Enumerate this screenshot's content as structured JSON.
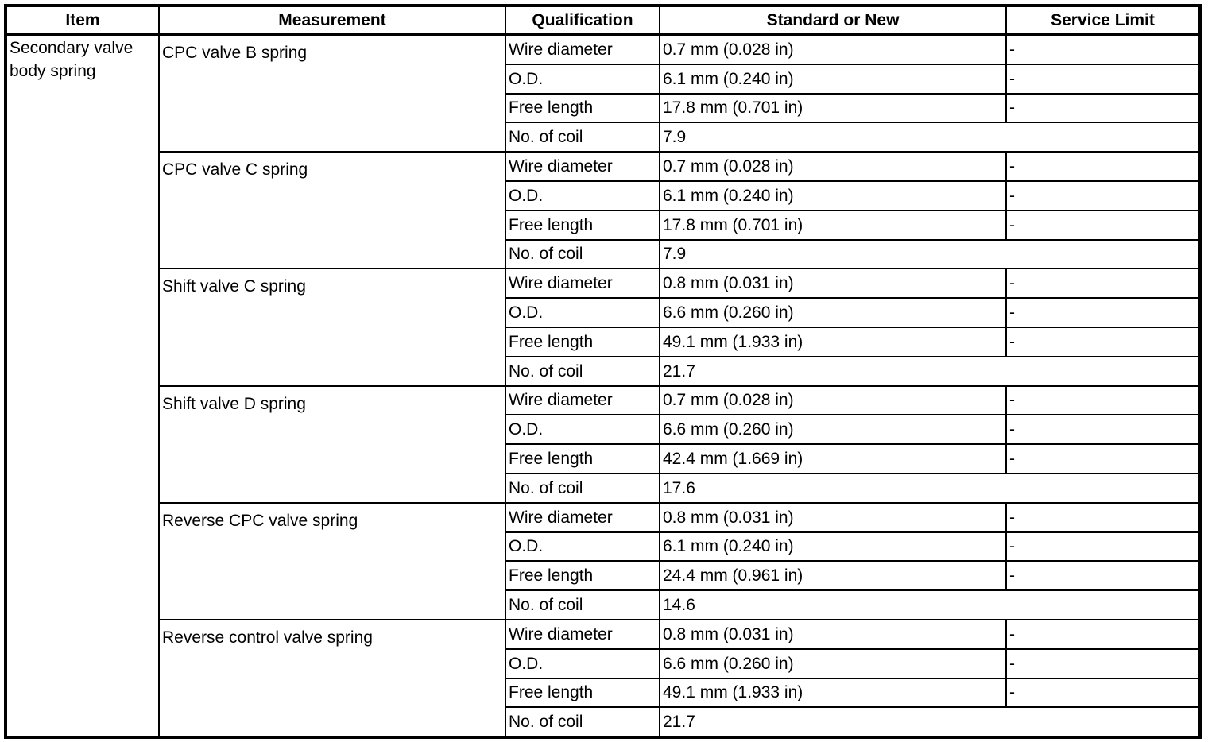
{
  "table": {
    "headers": [
      "Item",
      "Measurement",
      "Qualification",
      "Standard or New",
      "Service Limit"
    ],
    "item": "Secondary valve body spring",
    "groups": [
      {
        "measurement": "CPC valve B spring",
        "rows": [
          {
            "qualification": "Wire diameter",
            "standard": "0.7 mm (0.028 in)",
            "limit": "-"
          },
          {
            "qualification": "O.D.",
            "standard": "6.1 mm (0.240 in)",
            "limit": "-"
          },
          {
            "qualification": "Free length",
            "standard": "17.8 mm (0.701 in)",
            "limit": "-"
          },
          {
            "qualification": "No. of coil",
            "standard": "7.9"
          }
        ]
      },
      {
        "measurement": "CPC valve C spring",
        "rows": [
          {
            "qualification": "Wire diameter",
            "standard": "0.7 mm (0.028 in)",
            "limit": "-"
          },
          {
            "qualification": "O.D.",
            "standard": "6.1 mm (0.240 in)",
            "limit": "-"
          },
          {
            "qualification": "Free length",
            "standard": "17.8 mm (0.701 in)",
            "limit": "-"
          },
          {
            "qualification": "No. of coil",
            "standard": "7.9"
          }
        ]
      },
      {
        "measurement": "Shift valve C spring",
        "rows": [
          {
            "qualification": "Wire diameter",
            "standard": "0.8 mm (0.031 in)",
            "limit": "-"
          },
          {
            "qualification": "O.D.",
            "standard": "6.6 mm (0.260 in)",
            "limit": "-"
          },
          {
            "qualification": "Free length",
            "standard": "49.1 mm (1.933 in)",
            "limit": "-"
          },
          {
            "qualification": "No. of coil",
            "standard": "21.7"
          }
        ]
      },
      {
        "measurement": "Shift valve D spring",
        "rows": [
          {
            "qualification": "Wire diameter",
            "standard": "0.7 mm (0.028 in)",
            "limit": "-"
          },
          {
            "qualification": "O.D.",
            "standard": "6.6 mm (0.260 in)",
            "limit": "-"
          },
          {
            "qualification": "Free length",
            "standard": "42.4 mm (1.669 in)",
            "limit": "-"
          },
          {
            "qualification": "No. of coil",
            "standard": "17.6"
          }
        ]
      },
      {
        "measurement": "Reverse CPC valve spring",
        "rows": [
          {
            "qualification": "Wire diameter",
            "standard": "0.8 mm (0.031 in)",
            "limit": "-"
          },
          {
            "qualification": "O.D.",
            "standard": "6.1 mm (0.240 in)",
            "limit": "-"
          },
          {
            "qualification": "Free length",
            "standard": "24.4 mm (0.961 in)",
            "limit": "-"
          },
          {
            "qualification": "No. of coil",
            "standard": "14.6"
          }
        ]
      },
      {
        "measurement": "Reverse control valve spring",
        "rows": [
          {
            "qualification": "Wire diameter",
            "standard": "0.8 mm (0.031 in)",
            "limit": "-"
          },
          {
            "qualification": "O.D.",
            "standard": "6.6 mm (0.260 in)",
            "limit": "-"
          },
          {
            "qualification": "Free length",
            "standard": "49.1 mm (1.933 in)",
            "limit": "-"
          },
          {
            "qualification": "No. of coil",
            "standard": "21.7"
          }
        ]
      }
    ]
  }
}
